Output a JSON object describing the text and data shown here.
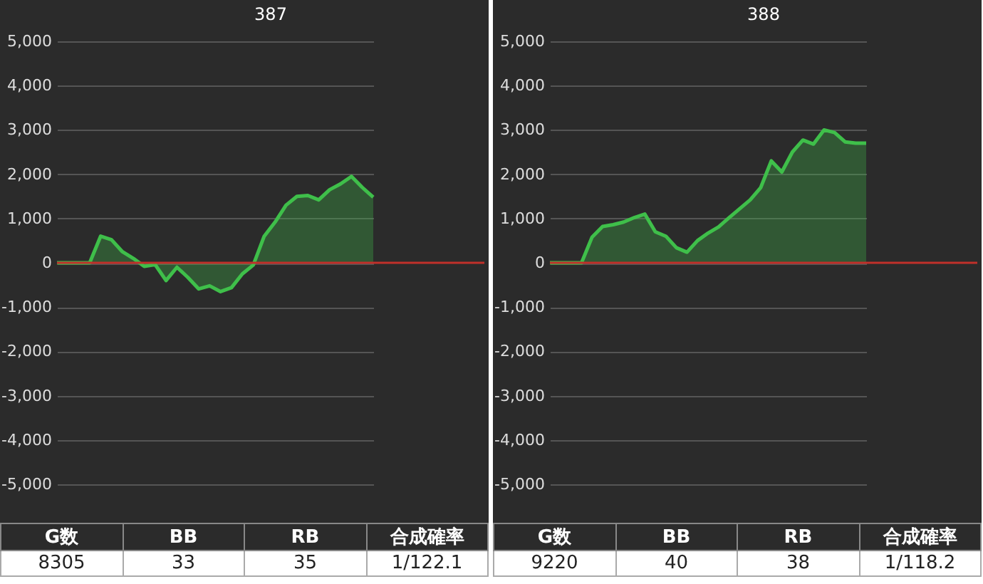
{
  "chart_data": [
    {
      "type": "area",
      "title": "387",
      "categories": [
        null,
        null,
        null,
        null,
        null,
        null,
        null,
        null,
        null,
        null,
        null,
        null,
        null,
        null,
        null,
        null,
        null,
        null,
        null,
        null,
        null,
        null,
        null,
        null,
        null,
        null,
        null,
        null,
        null,
        null
      ],
      "series": [
        {
          "color": "#3fbf4a",
          "values": [
            0,
            0,
            0,
            0,
            600,
            520,
            250,
            100,
            -80,
            -40,
            -400,
            -100,
            -330,
            -590,
            -520,
            -650,
            -560,
            -250,
            -50,
            600,
            920,
            1300,
            1500,
            1520,
            1420,
            1650,
            1780,
            1950,
            1700,
            1480
          ]
        }
      ],
      "ylim": [
        -5000,
        5000
      ],
      "yticks": [
        {
          "value": -5000,
          "label": "-5,000"
        },
        {
          "value": -4000,
          "label": "-4,000"
        },
        {
          "value": -3000,
          "label": "-3,000"
        },
        {
          "value": -2000,
          "label": "-2,000"
        },
        {
          "value": -1000,
          "label": "-1,000"
        },
        0,
        {
          "value": 1000,
          "label": "1,000"
        },
        {
          "value": 2000,
          "label": "2,000"
        },
        {
          "value": 3000,
          "label": "3,000"
        },
        {
          "value": 4000,
          "label": "4,000"
        },
        {
          "value": 5000,
          "label": "5,000"
        }
      ],
      "grid": "y",
      "tick_labels": "y",
      "ref_lines": [
        {
          "axis": "y",
          "value": 0,
          "color": "#c0302a"
        }
      ],
      "annotations": [
        "G数",
        "BB",
        "RB",
        "合成確率",
        "8305",
        "33",
        "35",
        "1/122.1"
      ]
    },
    {
      "type": "area",
      "title": "388",
      "categories": [
        null,
        null,
        null,
        null,
        null,
        null,
        null,
        null,
        null,
        null,
        null,
        null,
        null,
        null,
        null,
        null,
        null,
        null,
        null,
        null,
        null,
        null,
        null,
        null,
        null,
        null,
        null,
        null,
        null,
        null,
        null
      ],
      "series": [
        {
          "color": "#3fbf4a",
          "values": [
            0,
            0,
            0,
            0,
            580,
            820,
            860,
            920,
            1020,
            1100,
            700,
            600,
            340,
            240,
            500,
            670,
            810,
            1020,
            1220,
            1420,
            1700,
            2300,
            2050,
            2500,
            2770,
            2680,
            3000,
            2940,
            2730,
            2700,
            2700
          ]
        }
      ],
      "ylim": [
        -5000,
        5000
      ],
      "yticks": [
        {
          "value": -5000,
          "label": "-5,000"
        },
        {
          "value": -4000,
          "label": "-4,000"
        },
        {
          "value": -3000,
          "label": "-3,000"
        },
        {
          "value": -2000,
          "label": "-2,000"
        },
        {
          "value": -1000,
          "label": "-1,000"
        },
        0,
        {
          "value": 1000,
          "label": "1,000"
        },
        {
          "value": 2000,
          "label": "2,000"
        },
        {
          "value": 3000,
          "label": "3,000"
        },
        {
          "value": 4000,
          "label": "4,000"
        },
        {
          "value": 5000,
          "label": "5,000"
        }
      ],
      "grid": "y",
      "tick_labels": "y",
      "ref_lines": [
        {
          "axis": "y",
          "value": 0,
          "color": "#c0302a"
        }
      ],
      "annotations": [
        "G数",
        "BB",
        "RB",
        "合成確率",
        "9220",
        "40",
        "38",
        "1/118.2"
      ]
    }
  ]
}
